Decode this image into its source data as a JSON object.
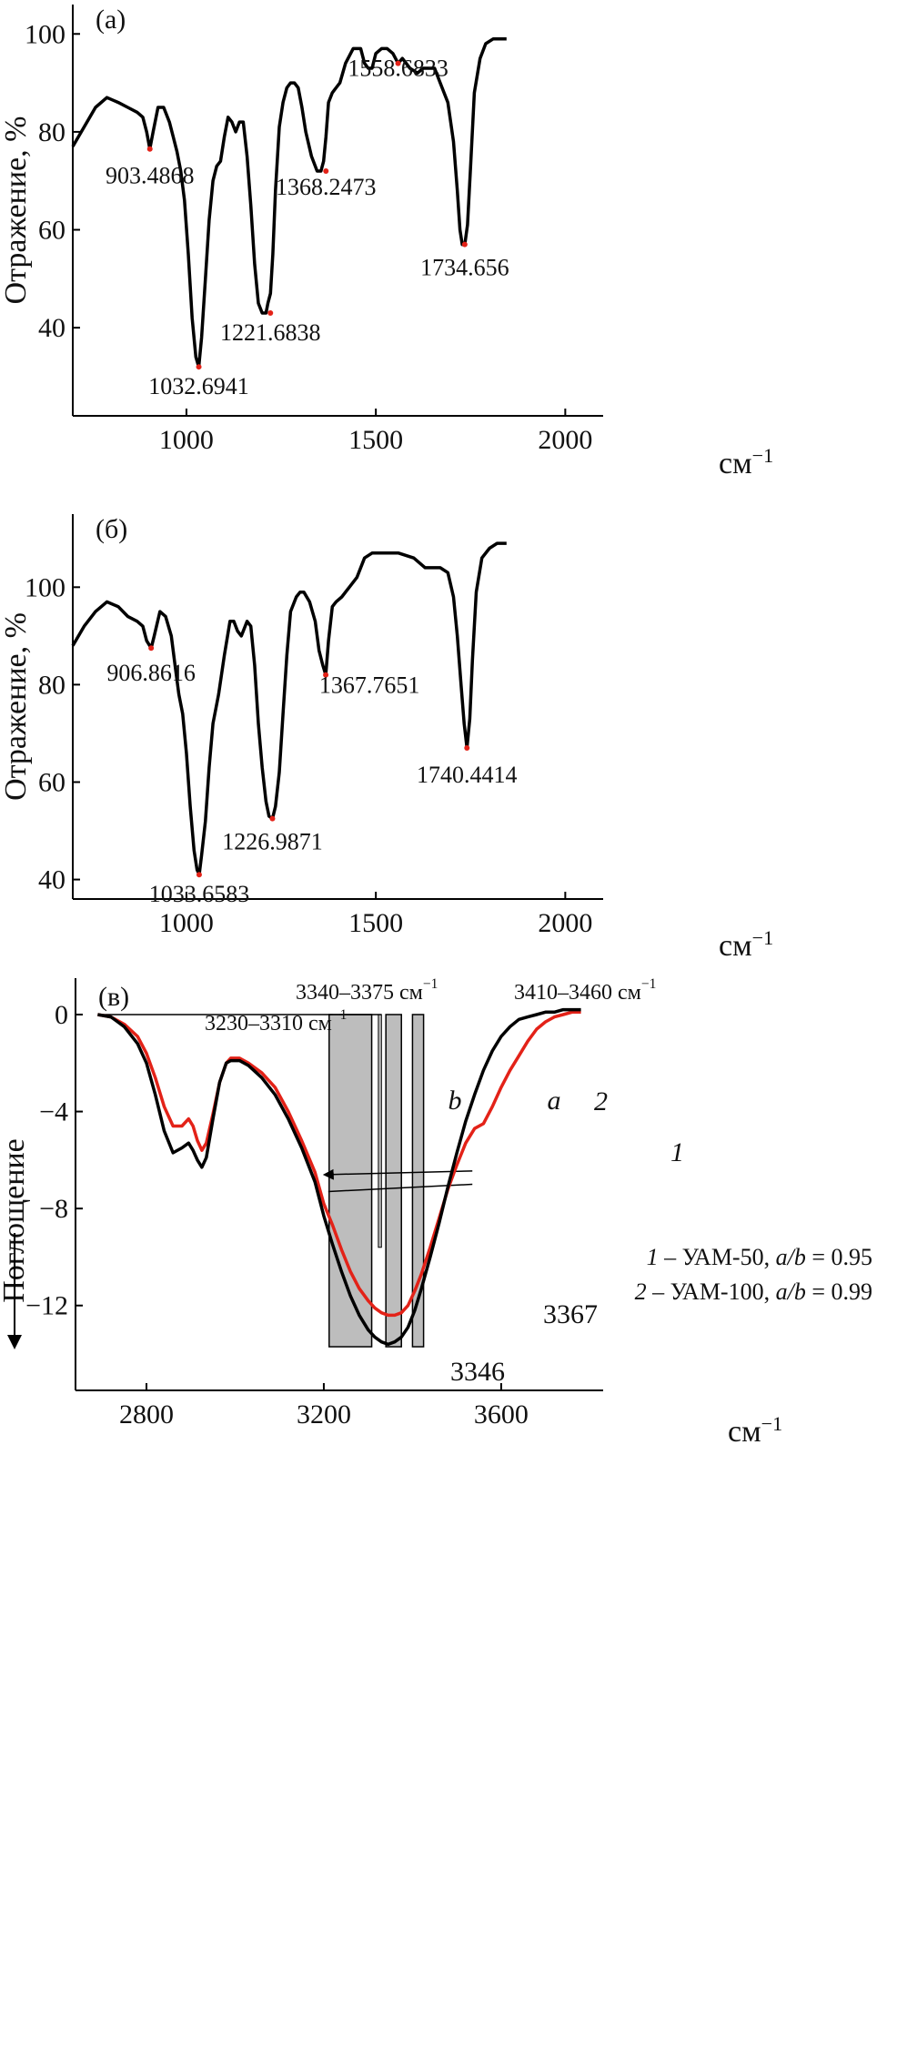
{
  "chart_data": [
    {
      "panel": "(a)",
      "type": "line",
      "ylabel": "Отражение, %",
      "xlabel": "см",
      "xlabel_sup": "−1",
      "xlim": [
        700,
        2100
      ],
      "ylim": [
        22,
        106
      ],
      "xticks": [
        1000,
        1500,
        2000
      ],
      "yticks": [
        40,
        60,
        80,
        100
      ],
      "series": [
        {
          "color": "#000000",
          "x": [
            700,
            730,
            760,
            790,
            820,
            845,
            870,
            885,
            895,
            903.5,
            912,
            925,
            940,
            955,
            965,
            975,
            985,
            995,
            1005,
            1015,
            1025,
            1032.7,
            1040,
            1050,
            1060,
            1070,
            1080,
            1090,
            1100,
            1110,
            1120,
            1130,
            1140,
            1150,
            1160,
            1170,
            1180,
            1190,
            1200,
            1210,
            1215,
            1221.7,
            1228,
            1235,
            1245,
            1255,
            1265,
            1275,
            1285,
            1295,
            1305,
            1315,
            1330,
            1345,
            1355,
            1362,
            1368.2,
            1375,
            1385,
            1395,
            1405,
            1420,
            1440,
            1460,
            1470,
            1480,
            1490,
            1500,
            1515,
            1530,
            1545,
            1558.7,
            1570,
            1590,
            1610,
            1625,
            1640,
            1655,
            1670,
            1690,
            1705,
            1715,
            1722,
            1728,
            1734.7,
            1742,
            1750,
            1760,
            1775,
            1790,
            1810,
            1830,
            1845
          ],
          "y": [
            77,
            81,
            85,
            87,
            86,
            85,
            84,
            83,
            80,
            76.5,
            80,
            85,
            85,
            82,
            79,
            76,
            72,
            66,
            55,
            42,
            34,
            32,
            38,
            50,
            62,
            70,
            73,
            74,
            79,
            83,
            82,
            80,
            82,
            82,
            75,
            65,
            53,
            45,
            43,
            43,
            45,
            47,
            55,
            68,
            81,
            86,
            89,
            90,
            90,
            89,
            85,
            80,
            75,
            72,
            72,
            74,
            79,
            86,
            88,
            89,
            90,
            94,
            97,
            97,
            94,
            93,
            93,
            96,
            97,
            97,
            96,
            94,
            95,
            93,
            92,
            93,
            93,
            93,
            90,
            86,
            78,
            68,
            60,
            57,
            57,
            61,
            73,
            88,
            95,
            98,
            99,
            99,
            99
          ]
        }
      ],
      "peaks": [
        {
          "x": 903.4868,
          "y": 76.5,
          "label": "903.4868"
        },
        {
          "x": 1032.6941,
          "y": 32,
          "label": "1032.6941"
        },
        {
          "x": 1221.6838,
          "y": 43,
          "label": "1221.6838"
        },
        {
          "x": 1368.2473,
          "y": 72,
          "label": "1368.2473"
        },
        {
          "x": 1558.6833,
          "y": 94,
          "label": "1558.6833"
        },
        {
          "x": 1734.656,
          "y": 57,
          "label": "1734.656"
        }
      ]
    },
    {
      "panel": "(б)",
      "type": "line",
      "ylabel": "Отражение, %",
      "xlabel": "см",
      "xlabel_sup": "−1",
      "xlim": [
        700,
        2100
      ],
      "ylim": [
        36,
        115
      ],
      "xticks": [
        1000,
        1500,
        2000
      ],
      "yticks": [
        40,
        60,
        80,
        100
      ],
      "series": [
        {
          "color": "#000000",
          "x": [
            700,
            730,
            760,
            790,
            820,
            845,
            870,
            885,
            895,
            906.9,
            915,
            930,
            945,
            960,
            970,
            980,
            990,
            1000,
            1010,
            1020,
            1028,
            1033.7,
            1040,
            1050,
            1060,
            1070,
            1085,
            1100,
            1115,
            1125,
            1135,
            1145,
            1160,
            1170,
            1180,
            1190,
            1200,
            1210,
            1218,
            1227,
            1235,
            1245,
            1255,
            1265,
            1275,
            1290,
            1300,
            1310,
            1325,
            1340,
            1350,
            1360,
            1367.8,
            1375,
            1385,
            1395,
            1410,
            1430,
            1450,
            1470,
            1490,
            1520,
            1560,
            1600,
            1630,
            1650,
            1670,
            1690,
            1705,
            1715,
            1725,
            1733,
            1740.4,
            1748,
            1755,
            1765,
            1780,
            1800,
            1820,
            1845
          ],
          "y": [
            88,
            92,
            95,
            97,
            96,
            94,
            93,
            92,
            89,
            87.5,
            90,
            95,
            94,
            90,
            84,
            78,
            74,
            66,
            55,
            46,
            42,
            41,
            45,
            52,
            63,
            72,
            78,
            86,
            93,
            93,
            91,
            90,
            93,
            92,
            84,
            72,
            63,
            56,
            53,
            52.5,
            55,
            62,
            74,
            86,
            95,
            98,
            99,
            99,
            97,
            93,
            87,
            84,
            82,
            89,
            96,
            97,
            98,
            100,
            102,
            106,
            107,
            107,
            107,
            106,
            104,
            104,
            104,
            103,
            98,
            90,
            80,
            72,
            67,
            73,
            85,
            99,
            106,
            108,
            109,
            109
          ]
        }
      ],
      "peaks": [
        {
          "x": 906.8616,
          "y": 87.5,
          "label": "906.8616"
        },
        {
          "x": 1033.6583,
          "y": 41,
          "label": "1033.6583"
        },
        {
          "x": 1226.9871,
          "y": 52.5,
          "label": "1226.9871"
        },
        {
          "x": 1367.7651,
          "y": 82,
          "label": "1367.7651"
        },
        {
          "x": 1740.4414,
          "y": 67,
          "label": "1740.4414"
        }
      ]
    },
    {
      "panel": "(в)",
      "type": "line",
      "ylabel": "Поглощение",
      "xlabel": "см",
      "xlabel_sup": "−1",
      "xlim": [
        2640,
        3830
      ],
      "ylim": [
        -15.5,
        1.5
      ],
      "xticks": [
        2800,
        3200,
        3600
      ],
      "yticks": [
        0,
        -4,
        -8,
        -12
      ],
      "ytick_labels": [
        "0",
        "−4",
        "−8",
        "−12"
      ],
      "ranges": [
        {
          "label": "3230–3310 см",
          "sup": "−1",
          "x1": 3212,
          "x2": 3308
        },
        {
          "label": "3340–3375 см",
          "sup": "−1",
          "x1": 3340,
          "x2": 3375
        },
        {
          "label": "3410–3460 см",
          "sup": "−1",
          "x1": 3400,
          "x2": 3425
        }
      ],
      "bar_thin": {
        "x1": 3323,
        "x2": 3330
      },
      "marks": [
        "3346",
        "3367"
      ],
      "curve_numbers": [
        "1",
        "2"
      ],
      "ab_labels": [
        "b",
        "a"
      ],
      "legend": [
        {
          "num": "1",
          "text": " – УАМ-50, ",
          "ab": "a/b",
          "val": " = 0.95"
        },
        {
          "num": "2",
          "text": " – УАМ-100, ",
          "ab": "a/b",
          "val": " = 0.99"
        }
      ],
      "series": [
        {
          "name": "1",
          "color": "#e32218",
          "x": [
            2690,
            2720,
            2750,
            2780,
            2800,
            2820,
            2840,
            2860,
            2880,
            2895,
            2905,
            2915,
            2925,
            2935,
            2950,
            2965,
            2980,
            2990,
            3000,
            3010,
            3030,
            3060,
            3090,
            3120,
            3150,
            3180,
            3200,
            3220,
            3240,
            3260,
            3280,
            3300,
            3315,
            3330,
            3345,
            3360,
            3375,
            3390,
            3405,
            3420,
            3440,
            3460,
            3480,
            3500,
            3520,
            3540,
            3560,
            3580,
            3600,
            3620,
            3640,
            3660,
            3680,
            3700,
            3720,
            3740,
            3760,
            3780
          ],
          "y": [
            0,
            -0.1,
            -0.4,
            -0.9,
            -1.6,
            -2.6,
            -3.8,
            -4.6,
            -4.6,
            -4.3,
            -4.6,
            -5.2,
            -5.6,
            -5.3,
            -4.1,
            -2.8,
            -2.0,
            -1.8,
            -1.8,
            -1.8,
            -2.0,
            -2.4,
            -3.0,
            -4.0,
            -5.2,
            -6.5,
            -7.8,
            -8.7,
            -9.7,
            -10.6,
            -11.3,
            -11.8,
            -12.1,
            -12.3,
            -12.4,
            -12.4,
            -12.3,
            -12.0,
            -11.4,
            -10.7,
            -9.6,
            -8.4,
            -7.2,
            -6.2,
            -5.3,
            -4.7,
            -4.5,
            -3.8,
            -3.0,
            -2.3,
            -1.7,
            -1.1,
            -0.6,
            -0.3,
            -0.1,
            0.0,
            0.1,
            0.1
          ]
        },
        {
          "name": "2",
          "color": "#000000",
          "x": [
            2690,
            2720,
            2750,
            2780,
            2800,
            2820,
            2840,
            2860,
            2880,
            2895,
            2905,
            2915,
            2925,
            2935,
            2950,
            2965,
            2980,
            2990,
            3000,
            3010,
            3030,
            3060,
            3090,
            3120,
            3150,
            3180,
            3200,
            3220,
            3240,
            3260,
            3280,
            3300,
            3315,
            3330,
            3345,
            3360,
            3375,
            3390,
            3405,
            3420,
            3440,
            3460,
            3480,
            3500,
            3520,
            3540,
            3560,
            3580,
            3600,
            3620,
            3640,
            3660,
            3680,
            3700,
            3720,
            3740,
            3760,
            3780
          ],
          "y": [
            0,
            -0.1,
            -0.5,
            -1.2,
            -2.0,
            -3.3,
            -4.8,
            -5.7,
            -5.5,
            -5.3,
            -5.6,
            -6.0,
            -6.3,
            -5.9,
            -4.3,
            -2.8,
            -2.0,
            -1.9,
            -1.9,
            -1.9,
            -2.1,
            -2.6,
            -3.3,
            -4.3,
            -5.5,
            -6.9,
            -8.3,
            -9.5,
            -10.6,
            -11.6,
            -12.4,
            -13.0,
            -13.3,
            -13.5,
            -13.6,
            -13.5,
            -13.3,
            -12.9,
            -12.2,
            -11.3,
            -10.0,
            -8.6,
            -7.1,
            -5.7,
            -4.4,
            -3.3,
            -2.3,
            -1.5,
            -0.9,
            -0.5,
            -0.2,
            -0.1,
            0.0,
            0.1,
            0.1,
            0.2,
            0.2,
            0.2
          ]
        }
      ]
    }
  ]
}
